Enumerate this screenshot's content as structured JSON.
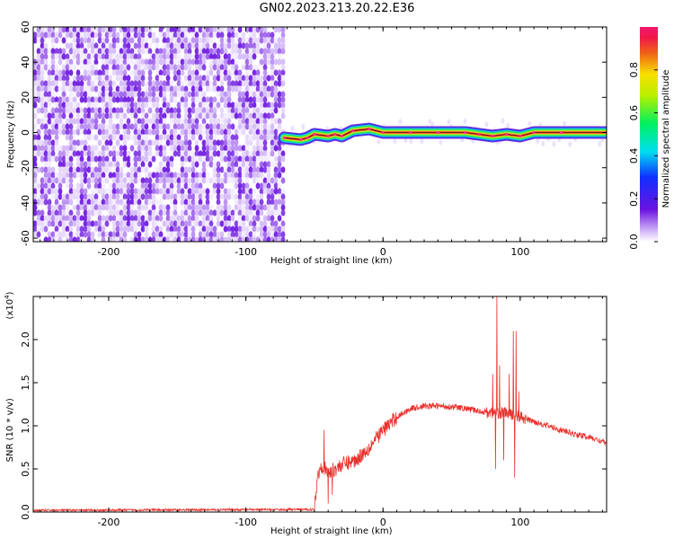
{
  "title": "GN02.2023.213.20.22.E36",
  "chart_data": [
    {
      "type": "heatmap",
      "name": "spectrogram",
      "xlabel": "Height of straight line (km)",
      "ylabel": "Frequency (Hz)",
      "xlim": [
        -255,
        163
      ],
      "ylim": [
        -62,
        60
      ],
      "x_ticks": [
        -200,
        -100,
        0,
        100
      ],
      "y_ticks": [
        -60,
        -40,
        -20,
        0,
        20,
        40,
        60
      ],
      "noise_region_x": [
        -255,
        -72
      ],
      "signal_line": [
        {
          "x": -72,
          "y": -3
        },
        {
          "x": -60,
          "y": -4
        },
        {
          "x": -55,
          "y": -3
        },
        {
          "x": -50,
          "y": -1
        },
        {
          "x": -40,
          "y": -2
        },
        {
          "x": -35,
          "y": -1
        },
        {
          "x": -30,
          "y": -2
        },
        {
          "x": -22,
          "y": 1
        },
        {
          "x": -10,
          "y": 2
        },
        {
          "x": 0,
          "y": 0
        },
        {
          "x": 20,
          "y": 0
        },
        {
          "x": 40,
          "y": 0
        },
        {
          "x": 60,
          "y": 0
        },
        {
          "x": 70,
          "y": -1
        },
        {
          "x": 80,
          "y": -2
        },
        {
          "x": 90,
          "y": -1
        },
        {
          "x": 100,
          "y": -2
        },
        {
          "x": 110,
          "y": 0
        },
        {
          "x": 130,
          "y": 0
        },
        {
          "x": 163,
          "y": 0
        }
      ],
      "colorbar": {
        "label": "Normalized spectral amplitude",
        "range": [
          0.0,
          1.0
        ],
        "ticks": [
          0.0,
          0.2,
          0.4,
          0.6,
          0.8
        ]
      }
    },
    {
      "type": "line",
      "name": "snr",
      "xlabel": "Height of straight line (km)",
      "ylabel": "SNR (10 * v/v)",
      "y_multiplier_label": "(x10",
      "y_multiplier_exp": "4",
      "y_multiplier_close": ")",
      "xlim": [
        -255,
        163
      ],
      "ylim": [
        0.0,
        2.5
      ],
      "x_ticks": [
        -200,
        -100,
        0,
        100
      ],
      "y_ticks": [
        0.0,
        0.5,
        1.0,
        1.5,
        2.0
      ],
      "line_color": "#e8322d",
      "envelope": [
        {
          "x": -255,
          "y": 0.02
        },
        {
          "x": -50,
          "y": 0.03
        },
        {
          "x": -48,
          "y": 0.4
        },
        {
          "x": -45,
          "y": 0.55
        },
        {
          "x": -40,
          "y": 0.45
        },
        {
          "x": -30,
          "y": 0.55
        },
        {
          "x": -20,
          "y": 0.6
        },
        {
          "x": -10,
          "y": 0.75
        },
        {
          "x": 0,
          "y": 0.95
        },
        {
          "x": 10,
          "y": 1.1
        },
        {
          "x": 20,
          "y": 1.2
        },
        {
          "x": 30,
          "y": 1.23
        },
        {
          "x": 40,
          "y": 1.23
        },
        {
          "x": 50,
          "y": 1.22
        },
        {
          "x": 60,
          "y": 1.2
        },
        {
          "x": 70,
          "y": 1.17
        },
        {
          "x": 80,
          "y": 1.15
        },
        {
          "x": 90,
          "y": 1.15
        },
        {
          "x": 100,
          "y": 1.1
        },
        {
          "x": 110,
          "y": 1.05
        },
        {
          "x": 120,
          "y": 1.0
        },
        {
          "x": 130,
          "y": 0.95
        },
        {
          "x": 140,
          "y": 0.9
        },
        {
          "x": 150,
          "y": 0.87
        },
        {
          "x": 163,
          "y": 0.8
        }
      ],
      "spikes": [
        {
          "x": -43,
          "y": 0.95
        },
        {
          "x": -40,
          "y": 0.1
        },
        {
          "x": -37,
          "y": 0.2
        },
        {
          "x": 80,
          "y": 1.6
        },
        {
          "x": 82,
          "y": 0.5
        },
        {
          "x": 83,
          "y": 2.5
        },
        {
          "x": 85,
          "y": 1.7
        },
        {
          "x": 88,
          "y": 0.6
        },
        {
          "x": 92,
          "y": 1.6
        },
        {
          "x": 95,
          "y": 2.1
        },
        {
          "x": 96,
          "y": 0.4
        },
        {
          "x": 97,
          "y": 2.1
        },
        {
          "x": 99,
          "y": 1.4
        }
      ]
    }
  ]
}
